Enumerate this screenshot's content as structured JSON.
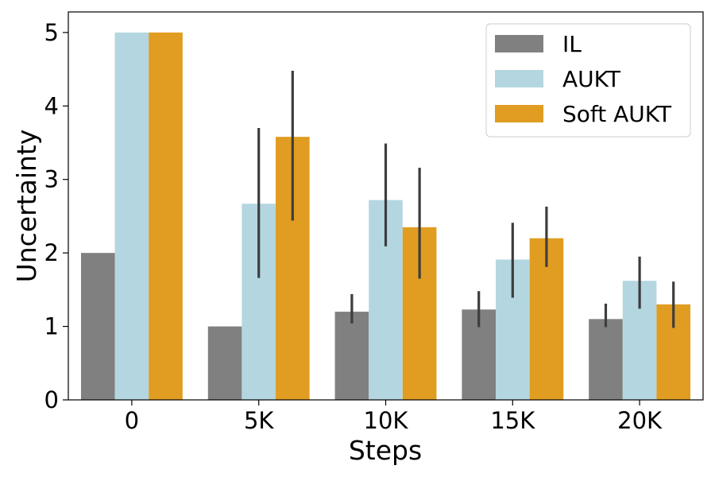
{
  "chart_data": {
    "type": "bar",
    "title": "",
    "xlabel": "Steps",
    "ylabel": "Uncertainty",
    "categories": [
      "0",
      "5K",
      "10K",
      "15K",
      "20K"
    ],
    "ylim": [
      0,
      5.28
    ],
    "yticks": [
      0,
      1,
      2,
      3,
      4,
      5
    ],
    "grid": false,
    "legend_position": "top-right",
    "series": [
      {
        "name": "IL",
        "color": "#808080",
        "values": [
          2.0,
          1.0,
          1.2,
          1.23,
          1.1
        ],
        "error_low": [
          null,
          null,
          1.04,
          0.99,
          0.99
        ],
        "error_high": [
          null,
          null,
          1.44,
          1.48,
          1.31
        ]
      },
      {
        "name": "AUKT",
        "color": "#b4d6e0",
        "values": [
          5.0,
          2.67,
          2.72,
          1.91,
          1.62
        ],
        "error_low": [
          null,
          1.66,
          2.09,
          1.39,
          1.24
        ],
        "error_high": [
          null,
          3.7,
          3.49,
          2.41,
          1.95
        ]
      },
      {
        "name": "Soft AUKT",
        "color": "#e09d21",
        "values": [
          5.0,
          3.58,
          2.35,
          2.2,
          1.3
        ],
        "error_low": [
          null,
          2.44,
          1.65,
          1.81,
          0.98
        ],
        "error_high": [
          null,
          4.48,
          3.16,
          2.63,
          1.61
        ]
      }
    ],
    "error_bar_color": "#3d3d3d"
  }
}
